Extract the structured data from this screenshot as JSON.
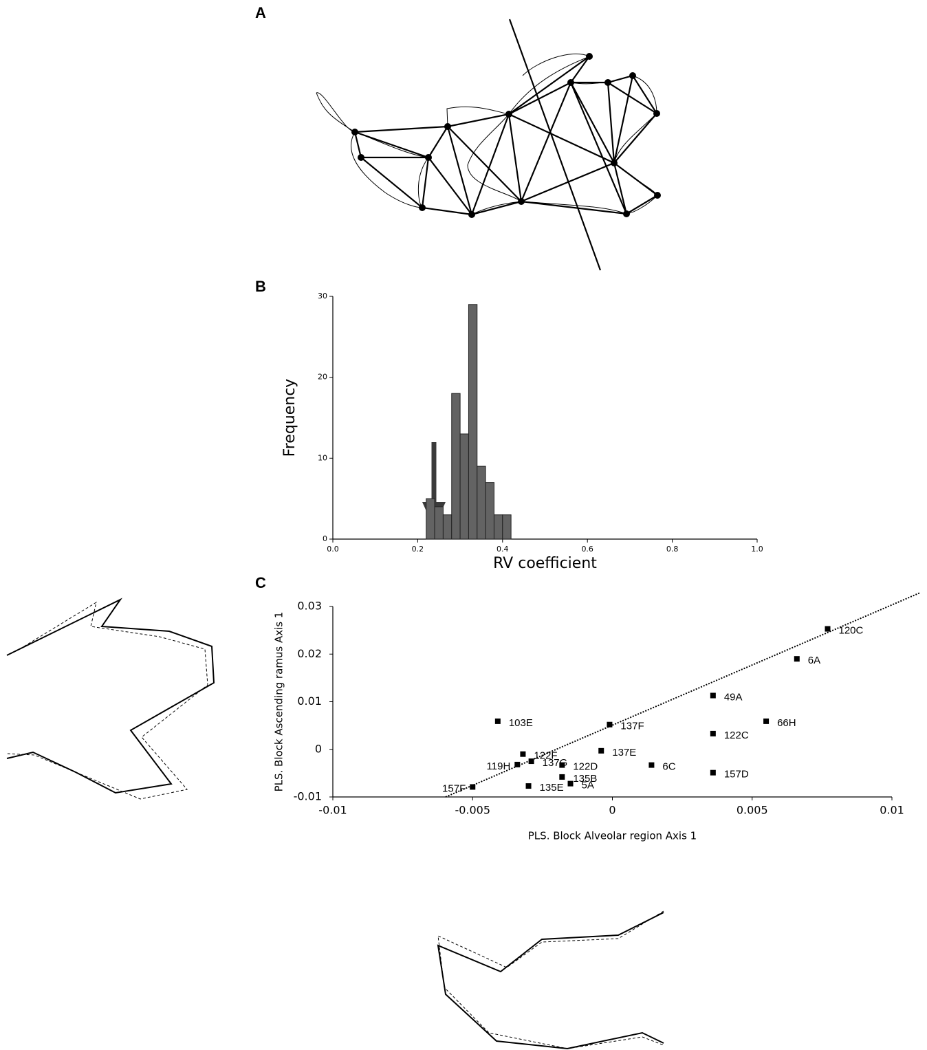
{
  "figure": {
    "panel_labels": [
      "A",
      "B",
      "C"
    ]
  },
  "chart_data": [
    {
      "type": "histogram",
      "x_label": "RV coefficient",
      "y_label": "Frequency",
      "bins": [
        0.22,
        0.24,
        0.26,
        0.28,
        0.3,
        0.32,
        0.34,
        0.36,
        0.38,
        0.4,
        0.42
      ],
      "values": [
        5,
        4,
        3,
        18,
        13,
        29,
        9,
        7,
        3,
        3
      ],
      "color": "#636363",
      "xlim": [
        0,
        1
      ],
      "xticks": [
        {
          "value": 0,
          "label": "0.0"
        },
        0.2,
        0.4,
        0.6,
        0.8,
        {
          "value": 1,
          "label": "1.0"
        }
      ],
      "ylim": [
        0,
        30
      ],
      "yticks": [
        0,
        10,
        20,
        30
      ]
    },
    {
      "type": "scatter",
      "x_label": "PLS. Block Alveolar region Axis 1",
      "y_label": "PLS. Block Ascending ramus  Axis 1",
      "point_labels": [
        "120C",
        "6A",
        "49A",
        "103E",
        "137F",
        "66H",
        "122C",
        "137E",
        "119H",
        "122F",
        "137G",
        "122D",
        "135B",
        "5A",
        "135E",
        "157F",
        "6C",
        "157D"
      ],
      "x": [
        0.0077,
        0.0066,
        0.0036,
        -0.0041,
        -0.0001,
        0.0055,
        0.0036,
        -0.0004,
        -0.0034,
        -0.0032,
        -0.0029,
        -0.0018,
        -0.0018,
        -0.0015,
        -0.003,
        -0.005,
        0.0014,
        0.0036
      ],
      "values": [
        0.0253,
        0.019,
        0.0113,
        0.0059,
        0.0052,
        0.0059,
        0.0033,
        -0.0003,
        -0.0032,
        -0.001,
        -0.0025,
        -0.0033,
        -0.0058,
        -0.0072,
        -0.0077,
        -0.0079,
        -0.0033,
        -0.0049
      ],
      "color": "#000000",
      "xlim": [
        -0.01,
        0.01
      ],
      "xticks": [
        -0.01,
        -0.005,
        0,
        0.005,
        0.01
      ],
      "ylim": [
        -0.01,
        0.03
      ],
      "yticks": [
        -0.01,
        0,
        0.01,
        0.02,
        0.03
      ]
    }
  ]
}
